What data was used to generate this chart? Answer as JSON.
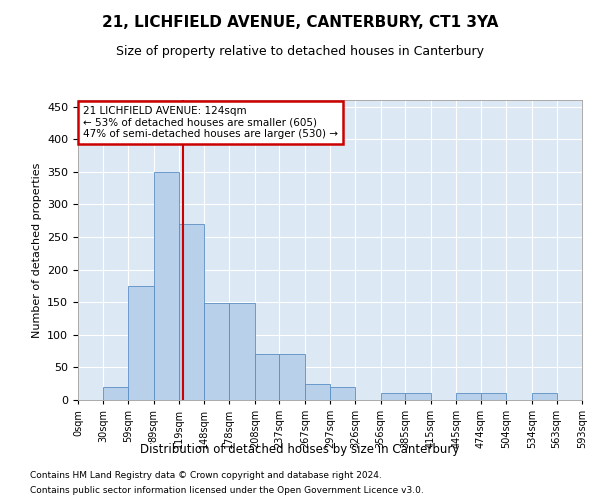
{
  "title": "21, LICHFIELD AVENUE, CANTERBURY, CT1 3YA",
  "subtitle": "Size of property relative to detached houses in Canterbury",
  "xlabel": "Distribution of detached houses by size in Canterbury",
  "ylabel": "Number of detached properties",
  "footnote1": "Contains HM Land Registry data © Crown copyright and database right 2024.",
  "footnote2": "Contains public sector information licensed under the Open Government Licence v3.0.",
  "bar_color": "#b8d0ea",
  "bar_edge_color": "#5b8ec4",
  "background_color": "#dce9f5",
  "property_line_value": 124,
  "property_line_color": "#cc0000",
  "annotation_title": "21 LICHFIELD AVENUE: 124sqm",
  "annotation_line2": "← 53% of detached houses are smaller (605)",
  "annotation_line3": "47% of semi-detached houses are larger (530) →",
  "annotation_box_edgecolor": "#cc0000",
  "bin_edges": [
    0,
    30,
    59,
    89,
    119,
    148,
    178,
    208,
    237,
    267,
    297,
    326,
    356,
    385,
    415,
    445,
    474,
    504,
    534,
    563,
    593
  ],
  "bin_labels": [
    "0sqm",
    "30sqm",
    "59sqm",
    "89sqm",
    "119sqm",
    "148sqm",
    "178sqm",
    "208sqm",
    "237sqm",
    "267sqm",
    "297sqm",
    "326sqm",
    "356sqm",
    "385sqm",
    "415sqm",
    "445sqm",
    "474sqm",
    "504sqm",
    "534sqm",
    "563sqm",
    "593sqm"
  ],
  "bar_heights": [
    0,
    20,
    175,
    350,
    270,
    148,
    148,
    70,
    70,
    25,
    20,
    0,
    10,
    10,
    0,
    10,
    10,
    0,
    10,
    0
  ],
  "ylim": [
    0,
    460
  ],
  "yticks": [
    0,
    50,
    100,
    150,
    200,
    250,
    300,
    350,
    400,
    450
  ]
}
